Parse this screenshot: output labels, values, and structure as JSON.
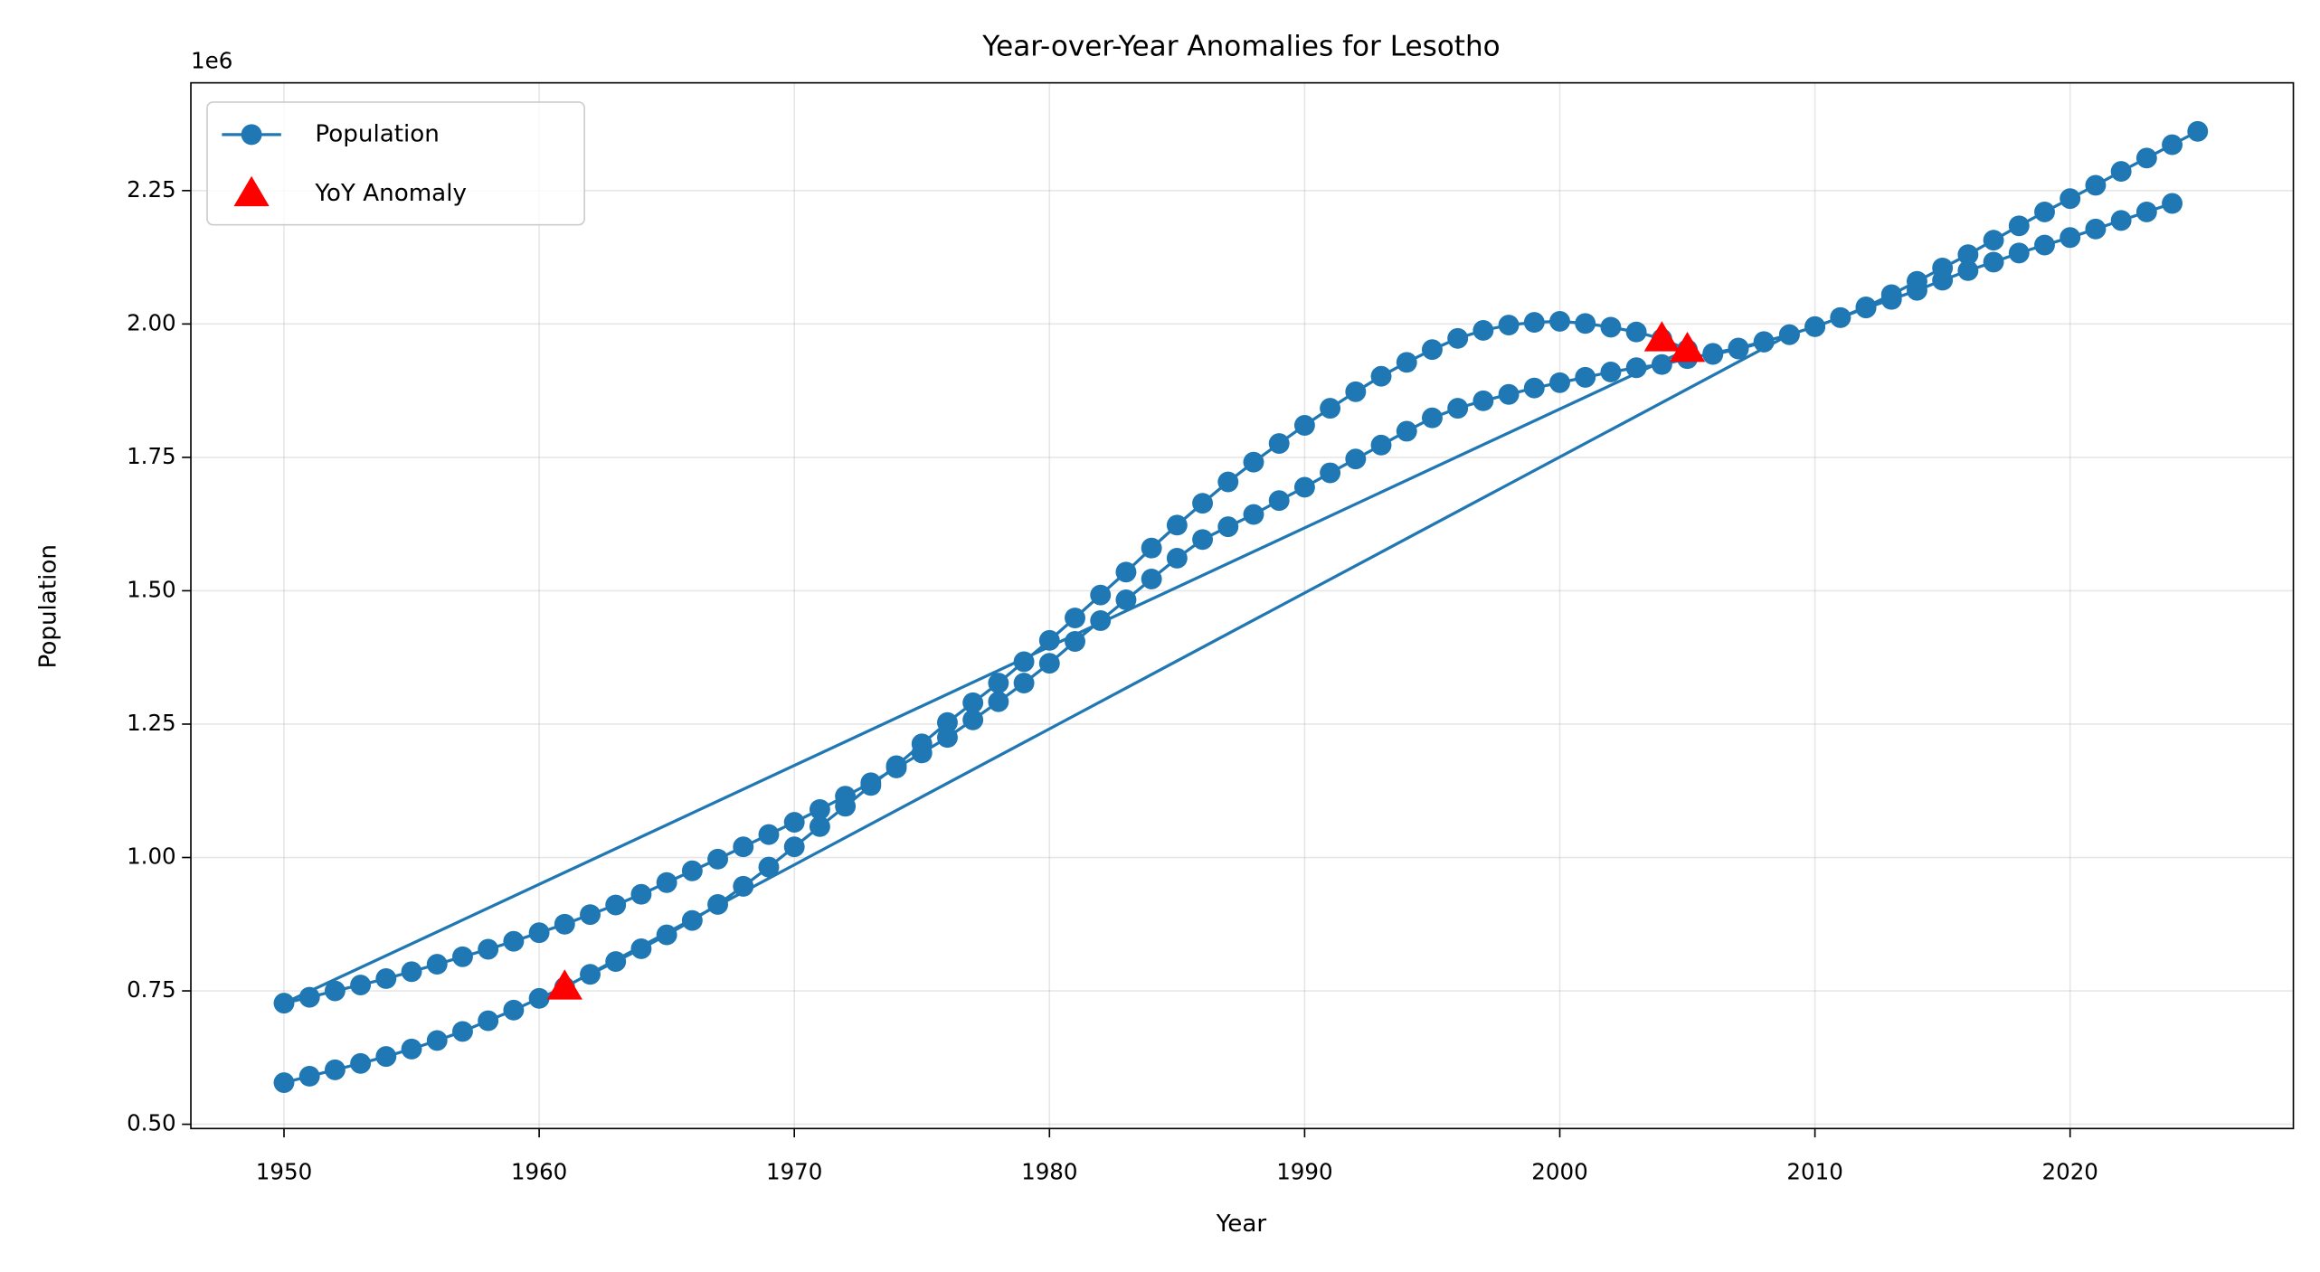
{
  "chart_data": {
    "type": "line",
    "title": "Year-over-Year Anomalies for Lesotho",
    "x_label": "Year",
    "y_label": "Population",
    "y_offset_label": "1e6",
    "xlim": [
      1946.35,
      2028.75
    ],
    "xticks": [
      1950,
      1960,
      1970,
      1980,
      1990,
      2000,
      2010,
      2020
    ],
    "ylim": [
      492000,
      2452000
    ],
    "yticks": [
      {
        "value": 500000,
        "label": "0.50"
      },
      {
        "value": 750000,
        "label": "0.75"
      },
      {
        "value": 1000000,
        "label": "1.00"
      },
      {
        "value": 1250000,
        "label": "1.25"
      },
      {
        "value": 1500000,
        "label": "1.50"
      },
      {
        "value": 1750000,
        "label": "1.75"
      },
      {
        "value": 2000000,
        "label": "2.00"
      },
      {
        "value": 2250000,
        "label": "2.25"
      }
    ],
    "grid": true,
    "legend": "upper left",
    "series": [
      {
        "name": "Population",
        "type": "line",
        "color": "#1f77b4",
        "x": [
          1962,
          1963,
          1964,
          1965,
          1966,
          1967,
          1968,
          1969,
          1970,
          1971,
          1972,
          1973,
          1974,
          1975,
          1976,
          1977,
          1978,
          1979,
          1980,
          1981,
          1982,
          1983,
          1984,
          1985,
          1986,
          1987,
          1988,
          1989,
          1990,
          1991,
          1992,
          1993,
          1994,
          1995,
          1996,
          1997,
          1998,
          1999,
          2000,
          2001,
          2002,
          2003,
          2004,
          2005,
          1950,
          1951,
          1952,
          1953,
          1954,
          1955,
          1956,
          1957,
          1958,
          1959,
          1960,
          1961,
          1962,
          1963,
          1964,
          1965,
          1966,
          1967,
          1968,
          1969,
          1970,
          1971,
          1972,
          1973,
          1974,
          1975,
          1976,
          1977,
          1978,
          1979,
          1980,
          1981,
          1982,
          1983,
          1984,
          1985,
          1986,
          1987,
          1988,
          1989,
          1990,
          1991,
          1992,
          1993,
          1994,
          1995,
          1996,
          1997,
          1998,
          1999,
          2000,
          2001,
          2002,
          2003,
          2004,
          2005,
          2006,
          2007,
          2008,
          2009,
          2010,
          2011,
          2012,
          2013,
          2014,
          2015,
          2016,
          2017,
          2018,
          2019,
          2020,
          2021,
          2022,
          2023,
          2024,
          null,
          1950,
          1951,
          1952,
          1953,
          1954,
          1955,
          1956,
          1957,
          1958,
          1959,
          1960,
          1961,
          2009,
          2010,
          2011,
          2012,
          2013,
          2014,
          2015,
          2016,
          2017,
          2018,
          2019,
          2020,
          2021,
          2022,
          2023,
          2024,
          2025,
          null,
          2006,
          2007,
          2008
        ],
        "values": [
          781000,
          805000,
          829000,
          855000,
          882000,
          912000,
          946000,
          982000,
          1020000,
          1058000,
          1096000,
          1135000,
          1172000,
          1213000,
          1253000,
          1290000,
          1327000,
          1367000,
          1407000,
          1449000,
          1492000,
          1535000,
          1580000,
          1623000,
          1664000,
          1704000,
          1741000,
          1776000,
          1810000,
          1842000,
          1873000,
          1902000,
          1928000,
          1952000,
          1973000,
          1988000,
          1998000,
          2003000,
          2005000,
          2001000,
          1994000,
          1985000,
          1972000,
          1952000,
          727000,
          738000,
          750000,
          761000,
          773000,
          786000,
          800000,
          814000,
          828000,
          843000,
          859000,
          875000,
          893000,
          911000,
          931000,
          953000,
          975000,
          997000,
          1020000,
          1043000,
          1066000,
          1090000,
          1115000,
          1140000,
          1168000,
          1196000,
          1225000,
          1258000,
          1292000,
          1327000,
          1364000,
          1405000,
          1444000,
          1483000,
          1522000,
          1561000,
          1596000,
          1620000,
          1643000,
          1669000,
          1694000,
          1721000,
          1747000,
          1773000,
          1799000,
          1824000,
          1842000,
          1856000,
          1868000,
          1880000,
          1890000,
          1900000,
          1910000,
          1918000,
          1924000,
          1935000,
          1945000,
          1955000,
          1967000,
          1980000,
          1995000,
          2012000,
          2030000,
          2046000,
          2063000,
          2082000,
          2100000,
          2116000,
          2133000,
          2148000,
          2162000,
          2178000,
          2194000,
          2210000,
          2226000,
          null,
          578000,
          590000,
          602000,
          614000,
          627000,
          641000,
          657000,
          674000,
          694000,
          714000,
          736000,
          757000,
          1980000,
          1995000,
          2012000,
          2032000,
          2055000,
          2080000,
          2105000,
          2130000,
          2157000,
          2184000,
          2210000,
          2235000,
          2260000,
          2286000,
          2311000,
          2336000,
          2361000,
          null,
          1943000,
          1953000,
          1966000
        ]
      },
      {
        "name": "YoY Anomaly",
        "type": "scatter",
        "color": "#ff0000",
        "x": [
          1961,
          2004,
          2005
        ],
        "values": [
          757000,
          1972000,
          1952000
        ]
      }
    ]
  }
}
